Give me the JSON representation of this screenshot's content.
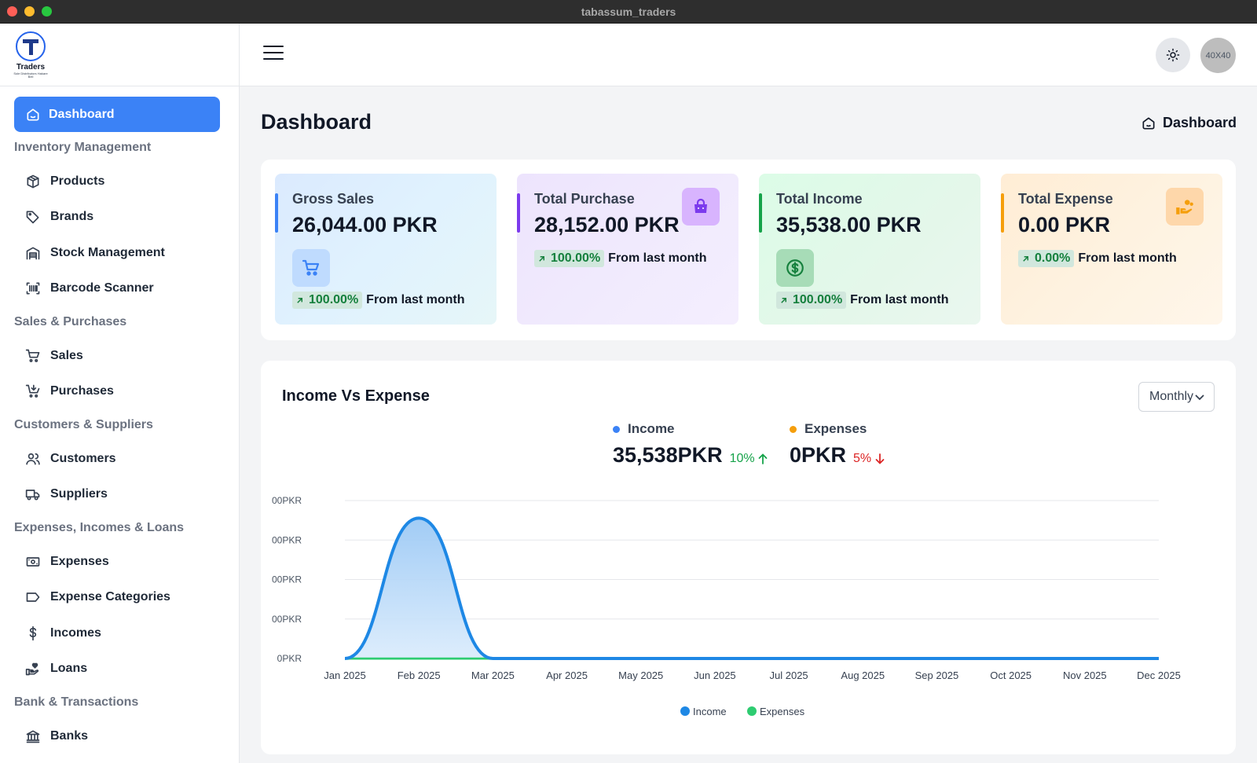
{
  "window": {
    "title": "tabassum_traders"
  },
  "brand": {
    "logo_text": "Traders",
    "logo_sub": "Sole Distributors Hakare Bell",
    "primary": "#3b82f6"
  },
  "sidebar": {
    "active": {
      "label": "Dashboard",
      "icon": "home-icon"
    },
    "sections": [
      {
        "title": "Inventory Management",
        "items": [
          {
            "label": "Products",
            "icon": "box-icon"
          },
          {
            "label": "Brands",
            "icon": "tag-icon"
          },
          {
            "label": "Stock Management",
            "icon": "warehouse-icon"
          },
          {
            "label": "Barcode Scanner",
            "icon": "barcode-icon"
          }
        ]
      },
      {
        "title": "Sales & Purchases",
        "items": [
          {
            "label": "Sales",
            "icon": "cart-icon"
          },
          {
            "label": "Purchases",
            "icon": "cart-arrow-icon"
          }
        ]
      },
      {
        "title": "Customers & Suppliers",
        "items": [
          {
            "label": "Customers",
            "icon": "users-icon"
          },
          {
            "label": "Suppliers",
            "icon": "truck-icon"
          }
        ]
      },
      {
        "title": "Expenses, Incomes & Loans",
        "items": [
          {
            "label": "Expenses",
            "icon": "banknote-icon"
          },
          {
            "label": "Expense Categories",
            "icon": "label-icon"
          },
          {
            "label": "Incomes",
            "icon": "dollar-icon"
          },
          {
            "label": "Loans",
            "icon": "hand-heart-icon"
          }
        ]
      },
      {
        "title": "Bank & Transactions",
        "items": [
          {
            "label": "Banks",
            "icon": "bank-icon"
          }
        ]
      }
    ]
  },
  "header": {
    "avatar_text": "40X40"
  },
  "page": {
    "title": "Dashboard",
    "breadcrumb": "Dashboard"
  },
  "stats": [
    {
      "title": "Gross Sales",
      "value": "26,044.00 PKR",
      "change": "100.00%",
      "from": "From last month",
      "accent": "#3b82f6",
      "icon": "shopping-cart-icon"
    },
    {
      "title": "Total Purchase",
      "value": "28,152.00 PKR",
      "change": "100.00%",
      "from": "From last month",
      "accent": "#7c3aed",
      "icon": "shopping-bag-icon"
    },
    {
      "title": "Total Income",
      "value": "35,538.00 PKR",
      "change": "100.00%",
      "from": "From last month",
      "accent": "#16a34a",
      "icon": "dollar-circle-icon"
    },
    {
      "title": "Total Expense",
      "value": "0.00 PKR",
      "change": "0.00%",
      "from": "From last month",
      "accent": "#f59e0b",
      "icon": "hand-coins-icon"
    }
  ],
  "income_expense": {
    "title": "Income Vs Expense",
    "period": "Monthly",
    "income": {
      "label": "Income",
      "value": "35,538PKR",
      "delta": "10%",
      "color": "#3b82f6"
    },
    "expenses": {
      "label": "Expenses",
      "value": "0PKR",
      "delta": "5%",
      "color": "#f59e0b"
    }
  },
  "chart_data": {
    "type": "area",
    "title": "",
    "xlabel": "",
    "ylabel": "",
    "categories": [
      "Jan 2025",
      "Feb 2025",
      "Mar 2025",
      "Apr 2025",
      "May 2025",
      "Jun 2025",
      "Jul 2025",
      "Aug 2025",
      "Sep 2025",
      "Oct 2025",
      "Nov 2025",
      "Dec 2025"
    ],
    "y_tick_labels": [
      "0PKR",
      "00PKR",
      "00PKR",
      "00PKR",
      "00PKR"
    ],
    "ylim": [
      0,
      40000
    ],
    "grid": true,
    "legend_position": "bottom",
    "series": [
      {
        "name": "Income",
        "color": "#1e88e5",
        "values": [
          0,
          35538,
          0,
          0,
          0,
          0,
          0,
          0,
          0,
          0,
          0,
          0
        ]
      },
      {
        "name": "Expenses",
        "color": "#2ecc71",
        "values": [
          0,
          0,
          0,
          0,
          0,
          0,
          0,
          0,
          0,
          0,
          0,
          0
        ]
      }
    ]
  }
}
